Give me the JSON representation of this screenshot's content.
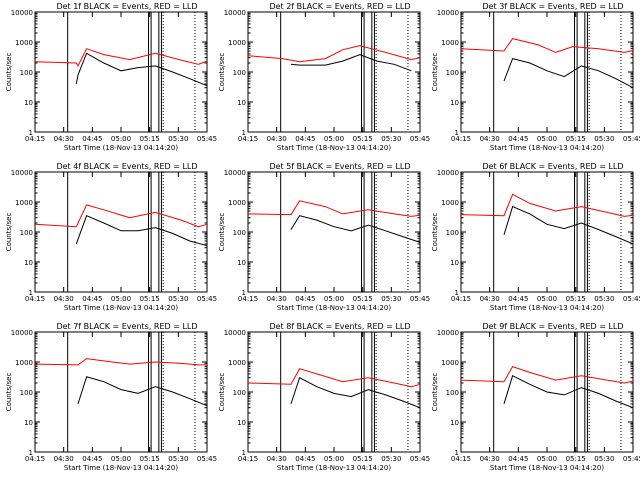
{
  "figure": {
    "background": "#ffffff",
    "axis_color": "#000000"
  },
  "chart_data": [
    {
      "type": "line",
      "title": "Det 1f BLACK = Events, RED = LLD",
      "xlabel": "Start Time (18-Nov-13 04:14:20)",
      "ylabel": "Counts/sec",
      "xticks": [
        "04:15",
        "04:30",
        "04:45",
        "05:00",
        "05:15",
        "05:30",
        "05:45"
      ],
      "yticks": [
        "1",
        "10",
        "100",
        "1000",
        "10000"
      ],
      "yscale": "log",
      "ylim": [
        1,
        10000
      ],
      "series": [
        {
          "color": "#ff0000",
          "x": [
            0,
            0.24,
            0.25,
            0.3,
            0.4,
            0.55,
            0.7,
            0.85,
            0.95,
            1
          ],
          "y": [
            220,
            200,
            160,
            600,
            380,
            260,
            420,
            250,
            180,
            230
          ]
        },
        {
          "color": "#000000",
          "x": [
            0.24,
            0.25,
            0.3,
            0.4,
            0.5,
            0.6,
            0.7,
            0.8,
            0.9,
            1
          ],
          "y": [
            40,
            80,
            420,
            200,
            110,
            140,
            160,
            100,
            60,
            35
          ]
        }
      ]
    },
    {
      "type": "line",
      "title": "Det 2f BLACK = Events, RED = LLD",
      "xlabel": "Start Time (18-Nov-13 04:14:20)",
      "ylabel": "Counts/sec",
      "xticks": [
        "04:15",
        "04:30",
        "04:45",
        "05:00",
        "05:15",
        "05:30",
        "05:45"
      ],
      "yticks": [
        "1",
        "10",
        "100",
        "1000",
        "10000"
      ],
      "yscale": "log",
      "ylim": [
        1,
        10000
      ],
      "series": [
        {
          "color": "#ff0000",
          "x": [
            0,
            0.2,
            0.3,
            0.45,
            0.55,
            0.65,
            0.8,
            0.95,
            1
          ],
          "y": [
            350,
            280,
            220,
            280,
            550,
            750,
            450,
            260,
            300
          ]
        },
        {
          "color": "#000000",
          "x": [
            0.25,
            0.3,
            0.45,
            0.55,
            0.65,
            0.75,
            0.85,
            0.95
          ],
          "y": [
            180,
            170,
            170,
            230,
            380,
            230,
            180,
            110
          ]
        }
      ]
    },
    {
      "type": "line",
      "title": "Det 3f BLACK = Events, RED = LLD",
      "xlabel": "Start Time (18-Nov-13 04:14:20)",
      "ylabel": "Counts/sec",
      "xticks": [
        "04:15",
        "04:30",
        "04:45",
        "05:00",
        "05:15",
        "05:30",
        "05:45"
      ],
      "yticks": [
        "1",
        "10",
        "100",
        "1000",
        "10000"
      ],
      "yscale": "log",
      "ylim": [
        1,
        10000
      ],
      "series": [
        {
          "color": "#ff0000",
          "x": [
            0,
            0.25,
            0.3,
            0.45,
            0.55,
            0.65,
            0.8,
            0.95,
            1
          ],
          "y": [
            600,
            500,
            1300,
            800,
            450,
            700,
            600,
            450,
            520
          ]
        },
        {
          "color": "#000000",
          "x": [
            0.25,
            0.3,
            0.4,
            0.5,
            0.6,
            0.7,
            0.8,
            0.9,
            1
          ],
          "y": [
            50,
            280,
            200,
            110,
            70,
            160,
            110,
            60,
            30
          ]
        }
      ]
    },
    {
      "type": "line",
      "title": "Det 4f BLACK = Events, RED = LLD",
      "xlabel": "Start Time (18-Nov-13 04:14:20)",
      "ylabel": "Counts/sec",
      "xticks": [
        "04:15",
        "04:30",
        "04:45",
        "05:00",
        "05:15",
        "05:30",
        "05:45"
      ],
      "yticks": [
        "1",
        "10",
        "100",
        "1000",
        "10000"
      ],
      "yscale": "log",
      "ylim": [
        1,
        10000
      ],
      "series": [
        {
          "color": "#ff0000",
          "x": [
            0,
            0.24,
            0.3,
            0.4,
            0.55,
            0.7,
            0.85,
            0.95,
            1
          ],
          "y": [
            180,
            150,
            800,
            550,
            300,
            450,
            250,
            150,
            180
          ]
        },
        {
          "color": "#000000",
          "x": [
            0.24,
            0.3,
            0.4,
            0.5,
            0.6,
            0.7,
            0.8,
            0.9,
            1
          ],
          "y": [
            40,
            350,
            200,
            110,
            110,
            140,
            90,
            50,
            35
          ]
        }
      ]
    },
    {
      "type": "line",
      "title": "Det 5f BLACK = Events, RED = LLD",
      "xlabel": "Start Time (18-Nov-13 04:14:20)",
      "ylabel": "Counts/sec",
      "xticks": [
        "04:15",
        "04:30",
        "04:45",
        "05:00",
        "05:15",
        "05:30",
        "05:45"
      ],
      "yticks": [
        "1",
        "10",
        "100",
        "1000",
        "10000"
      ],
      "yscale": "log",
      "ylim": [
        1,
        10000
      ],
      "series": [
        {
          "color": "#ff0000",
          "x": [
            0,
            0.25,
            0.3,
            0.45,
            0.55,
            0.7,
            0.85,
            0.95,
            1
          ],
          "y": [
            400,
            380,
            1100,
            700,
            400,
            550,
            400,
            330,
            360
          ]
        },
        {
          "color": "#000000",
          "x": [
            0.25,
            0.3,
            0.4,
            0.5,
            0.6,
            0.7,
            0.8,
            0.9,
            1
          ],
          "y": [
            120,
            350,
            250,
            150,
            110,
            170,
            110,
            70,
            45
          ]
        }
      ]
    },
    {
      "type": "line",
      "title": "Det 6f BLACK = Events, RED = LLD",
      "xlabel": "Start Time (18-Nov-13 04:14:20)",
      "ylabel": "Counts/sec",
      "xticks": [
        "04:15",
        "04:30",
        "04:45",
        "05:00",
        "05:15",
        "05:30",
        "05:45"
      ],
      "yticks": [
        "1",
        "10",
        "100",
        "1000",
        "10000"
      ],
      "yscale": "log",
      "ylim": [
        1,
        10000
      ],
      "series": [
        {
          "color": "#ff0000",
          "x": [
            0,
            0.25,
            0.3,
            0.4,
            0.55,
            0.7,
            0.85,
            0.95,
            1
          ],
          "y": [
            380,
            350,
            1800,
            900,
            500,
            700,
            450,
            330,
            360
          ]
        },
        {
          "color": "#000000",
          "x": [
            0.25,
            0.3,
            0.4,
            0.5,
            0.6,
            0.7,
            0.8,
            0.9,
            1
          ],
          "y": [
            80,
            700,
            400,
            180,
            130,
            200,
            120,
            70,
            40
          ]
        }
      ]
    },
    {
      "type": "line",
      "title": "Det 7f BLACK = Events, RED = LLD",
      "xlabel": "Start Time (18-Nov-13 04:14:20)",
      "ylabel": "Counts/sec",
      "xticks": [
        "04:15",
        "04:30",
        "04:45",
        "05:00",
        "05:15",
        "05:30",
        "05:45"
      ],
      "yticks": [
        "1",
        "10",
        "100",
        "1000",
        "10000"
      ],
      "yscale": "log",
      "ylim": [
        1,
        10000
      ],
      "series": [
        {
          "color": "#ff0000",
          "x": [
            0,
            0.25,
            0.3,
            0.45,
            0.55,
            0.7,
            0.85,
            0.95,
            1
          ],
          "y": [
            850,
            800,
            1300,
            1000,
            850,
            1000,
            900,
            800,
            800
          ]
        },
        {
          "color": "#000000",
          "x": [
            0.25,
            0.3,
            0.4,
            0.5,
            0.6,
            0.7,
            0.8,
            0.9,
            1
          ],
          "y": [
            40,
            320,
            220,
            120,
            90,
            150,
            100,
            60,
            35
          ]
        }
      ]
    },
    {
      "type": "line",
      "title": "Det 8f BLACK = Events, RED = LLD",
      "xlabel": "Start Time (18-Nov-13 04:14:20)",
      "ylabel": "Counts/sec",
      "xticks": [
        "04:15",
        "04:30",
        "04:45",
        "05:00",
        "05:15",
        "05:30",
        "05:45"
      ],
      "yticks": [
        "1",
        "10",
        "100",
        "1000",
        "10000"
      ],
      "yscale": "log",
      "ylim": [
        1,
        10000
      ],
      "series": [
        {
          "color": "#ff0000",
          "x": [
            0,
            0.25,
            0.3,
            0.4,
            0.55,
            0.7,
            0.85,
            0.95,
            1
          ],
          "y": [
            200,
            180,
            600,
            400,
            220,
            300,
            200,
            150,
            180
          ]
        },
        {
          "color": "#000000",
          "x": [
            0.25,
            0.3,
            0.4,
            0.5,
            0.6,
            0.7,
            0.8,
            0.9,
            1
          ],
          "y": [
            40,
            300,
            150,
            90,
            70,
            120,
            80,
            50,
            30
          ]
        }
      ]
    },
    {
      "type": "line",
      "title": "Det 9f BLACK = Events, RED = LLD",
      "xlabel": "Start Time (18-Nov-13 04:14:20)",
      "ylabel": "Counts/sec",
      "xticks": [
        "04:15",
        "04:30",
        "04:45",
        "05:00",
        "05:15",
        "05:30",
        "05:45"
      ],
      "yticks": [
        "1",
        "10",
        "100",
        "1000",
        "10000"
      ],
      "yscale": "log",
      "ylim": [
        1,
        10000
      ],
      "series": [
        {
          "color": "#ff0000",
          "x": [
            0,
            0.25,
            0.3,
            0.4,
            0.55,
            0.7,
            0.85,
            0.95,
            1
          ],
          "y": [
            250,
            220,
            700,
            450,
            250,
            350,
            250,
            200,
            230
          ]
        },
        {
          "color": "#000000",
          "x": [
            0.25,
            0.3,
            0.4,
            0.5,
            0.6,
            0.7,
            0.8,
            0.9,
            1
          ],
          "y": [
            40,
            350,
            180,
            100,
            80,
            140,
            90,
            50,
            30
          ]
        }
      ]
    }
  ]
}
